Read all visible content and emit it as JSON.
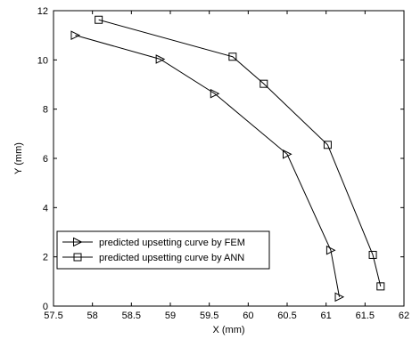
{
  "chart_data": {
    "type": "line",
    "title": "",
    "xlabel": "X (mm)",
    "ylabel": "Y (mm)",
    "xlim": [
      57.5,
      62
    ],
    "ylim": [
      0,
      12
    ],
    "xticks": [
      57.5,
      58,
      58.5,
      59,
      59.5,
      60,
      60.5,
      61,
      61.5,
      62
    ],
    "yticks": [
      0,
      2,
      4,
      6,
      8,
      10,
      12
    ],
    "xtick_labels": [
      "57.5",
      "58",
      "58.5",
      "59",
      "59.5",
      "60",
      "60.5",
      "61",
      "61.5",
      "62"
    ],
    "ytick_labels": [
      "0",
      "2",
      "4",
      "6",
      "8",
      "10",
      "12"
    ],
    "grid": false,
    "legend_position": "bottom-left",
    "series": [
      {
        "name": "predicted upsetting curve by FEM",
        "marker": "triangle-right",
        "color": "#000000",
        "x": [
          57.78,
          58.87,
          59.57,
          60.5,
          61.06,
          61.17
        ],
        "y": [
          11.0,
          10.03,
          8.63,
          6.17,
          2.27,
          0.37
        ]
      },
      {
        "name": "predicted upsetting curve by ANN",
        "marker": "square",
        "color": "#000000",
        "x": [
          58.08,
          59.8,
          60.2,
          61.02,
          61.6,
          61.7
        ],
        "y": [
          11.63,
          10.13,
          9.03,
          6.55,
          2.08,
          0.8
        ]
      }
    ]
  }
}
